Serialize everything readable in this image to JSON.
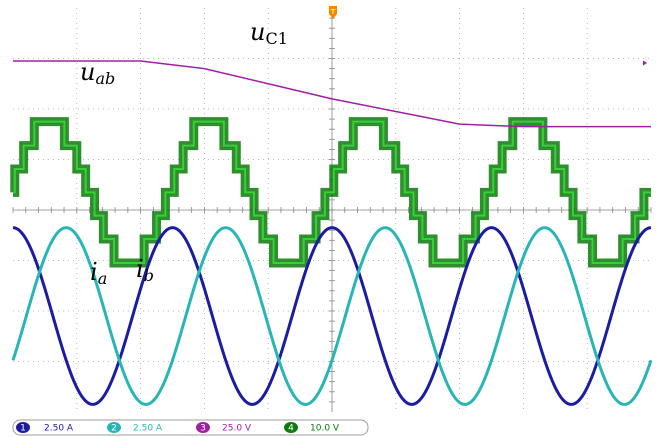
{
  "chart_data": {
    "type": "line",
    "title": "",
    "xlabel": "",
    "ylabel": "",
    "grid": true,
    "time_divisions": 10,
    "voltage_divisions": 8,
    "series": [
      {
        "name": "uC1",
        "label_main": "u",
        "label_sub": "C1",
        "channel": 3,
        "color": "#a020a0",
        "scale": "25.0 V",
        "waveform": "capacitor voltage step-down",
        "values_div": [
          2.95,
          2.95,
          2.95,
          2.8,
          2.5,
          2.2,
          1.95,
          1.7,
          1.65,
          1.65,
          1.65
        ]
      },
      {
        "name": "uab",
        "label_main": "u",
        "label_sub": "ab",
        "channel": 4,
        "color": "#0c7a0c",
        "scale": "10.0 V",
        "waveform": "multilevel staircase",
        "cycles": 4,
        "peak_div": 1.4
      },
      {
        "name": "ia",
        "label_main": "i",
        "label_sub": "a",
        "channel": 1,
        "color": "#1c1c9e",
        "scale": "2.50 A",
        "waveform": "sinusoid",
        "cycles": 4,
        "peak_div": 1.75,
        "phase_deg": 0
      },
      {
        "name": "ib",
        "label_main": "i",
        "label_sub": "b",
        "channel": 2,
        "color": "#2ab5b5",
        "scale": "2.50 A",
        "waveform": "sinusoid",
        "cycles": 4,
        "peak_div": 1.75,
        "phase_deg": -120
      }
    ]
  },
  "status_bar": {
    "ch1": {
      "num": "1",
      "scale": "2.50 A",
      "color": "#1c1c9e"
    },
    "ch2": {
      "num": "2",
      "scale": "2.50 A",
      "color": "#2ab5b5"
    },
    "ch3": {
      "num": "3",
      "scale": "25.0 V",
      "color": "#a020a0"
    },
    "ch4": {
      "num": "4",
      "scale": "10.0 V",
      "color": "#0c7a0c"
    }
  },
  "trigger_marker": {
    "text": "T",
    "color": "#f08a00"
  },
  "colors": {
    "grid": "#a8a8a8",
    "background": "#ffffff"
  }
}
